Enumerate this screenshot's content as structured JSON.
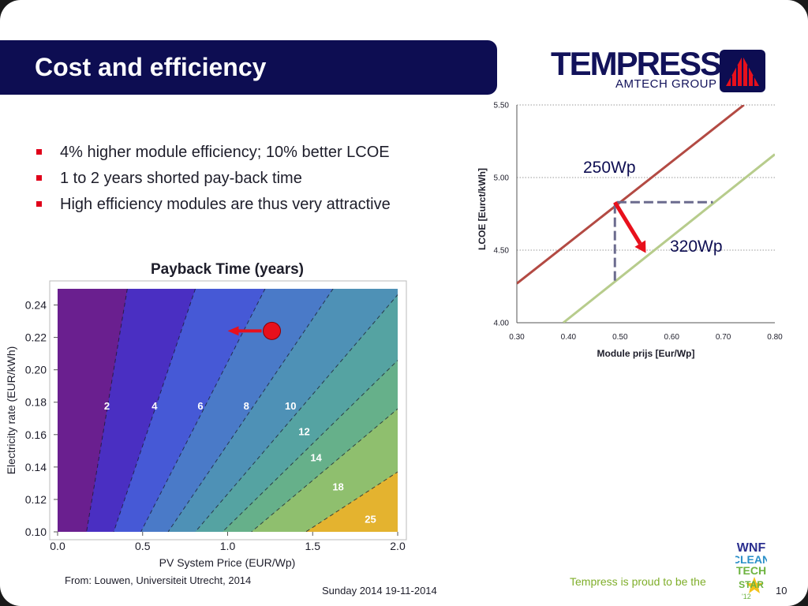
{
  "slide": {
    "title": "Cost and efficiency",
    "bullets": [
      "4% higher module efficiency; 10% better LCOE",
      "1 to 2 years shorted pay-back time",
      "High efficiency modules are thus very attractive"
    ],
    "bullet_color": "#e0001a",
    "title_bar_color": "#0d0d52"
  },
  "logo": {
    "name": "TEMPRESS",
    "subtitle": "AMTECH GROUP",
    "icon": "tempress-sail-logo"
  },
  "footer": {
    "source": "From: Louwen, Universiteit Utrecht, 2014",
    "date": "Sunday 2014 19-11-2014",
    "proud": "Tempress is proud to be the",
    "page": "10",
    "badge_text": [
      "WNF",
      "CLEAN",
      "TECH",
      "STAR",
      "'12"
    ]
  },
  "chart_data": [
    {
      "type": "line",
      "title": "",
      "xlabel": "Module prijs [Eur/Wp]",
      "ylabel": "LCOE [Eurct/kWh]",
      "xlim": [
        0.3,
        0.8
      ],
      "ylim": [
        4.0,
        5.5
      ],
      "x_ticks": [
        "0.30",
        "0.40",
        "0.50",
        "0.60",
        "0.70",
        "0.80"
      ],
      "y_ticks": [
        "4.00",
        "4.50",
        "5.00",
        "5.50"
      ],
      "grid": "horizontal dotted",
      "series": [
        {
          "name": "250Wp",
          "color": "#b34a43",
          "x": [
            0.3,
            0.74
          ],
          "y": [
            4.27,
            5.5
          ]
        },
        {
          "name": "320Wp",
          "color": "#b7cc8c",
          "x": [
            0.39,
            0.8
          ],
          "y": [
            4.0,
            5.16
          ]
        }
      ],
      "annotation_lines": {
        "color": "#6b6b8e",
        "points": [
          [
            0.49,
            4.29
          ],
          [
            0.49,
            4.83
          ],
          [
            0.68,
            4.83
          ]
        ]
      },
      "arrow": {
        "color": "#e8101c",
        "from": [
          0.49,
          4.83
        ],
        "to": [
          0.55,
          4.48
        ]
      }
    },
    {
      "type": "heatmap",
      "title": "Payback Time (years)",
      "xlabel": "PV System Price (EUR/Wp)",
      "ylabel": "Electricity rate (EUR/kWh)",
      "xlim": [
        0.0,
        2.0
      ],
      "ylim": [
        0.1,
        0.25
      ],
      "x_ticks": [
        "0.0",
        "0.5",
        "1.0",
        "1.5",
        "2.0"
      ],
      "y_ticks": [
        "0.10",
        "0.12",
        "0.14",
        "0.16",
        "0.18",
        "0.20",
        "0.22",
        "0.24"
      ],
      "contours": [
        {
          "label": "2",
          "color": "#6a1f8f",
          "x_top": 0.41,
          "x_bottom": 0.17
        },
        {
          "label": "4",
          "color": "#4a2fc2",
          "x_top": 0.81,
          "x_bottom": 0.33
        },
        {
          "label": "6",
          "color": "#4659d6",
          "x_top": 1.22,
          "x_bottom": 0.49
        },
        {
          "label": "8",
          "color": "#4a7ac8",
          "x_top": 1.62,
          "x_bottom": 0.65
        },
        {
          "label": "10",
          "color": "#4e91b6",
          "x_top": 2.03,
          "x_bottom": 0.81
        },
        {
          "label": "12",
          "color": "#55a3a2",
          "x_top": 2.43,
          "x_bottom": 0.97
        },
        {
          "label": "14",
          "color": "#66b08a",
          "x_top": 2.84,
          "x_bottom": 1.14
        },
        {
          "label": "18",
          "color": "#8fbf6e",
          "x_top": 3.65,
          "x_bottom": 1.46
        },
        {
          "label": "25",
          "color": "#e4b32f",
          "x_top": 5.07,
          "x_bottom": 2.03
        }
      ],
      "final_band_color": "#e02a24",
      "contour_labels": [
        {
          "text": "2",
          "x": 0.29,
          "y": 0.178
        },
        {
          "text": "4",
          "x": 0.57,
          "y": 0.178
        },
        {
          "text": "6",
          "x": 0.84,
          "y": 0.178
        },
        {
          "text": "8",
          "x": 1.11,
          "y": 0.178
        },
        {
          "text": "10",
          "x": 1.37,
          "y": 0.178
        },
        {
          "text": "12",
          "x": 1.45,
          "y": 0.162
        },
        {
          "text": "14",
          "x": 1.52,
          "y": 0.146
        },
        {
          "text": "18",
          "x": 1.65,
          "y": 0.128
        },
        {
          "text": "25",
          "x": 1.84,
          "y": 0.108
        }
      ],
      "marker": {
        "x": 1.26,
        "y": 0.224,
        "color": "#e8101c"
      },
      "arrow": {
        "from": [
          1.2,
          0.224
        ],
        "to": [
          1.0,
          0.224
        ],
        "color": "#e8101c"
      }
    }
  ]
}
